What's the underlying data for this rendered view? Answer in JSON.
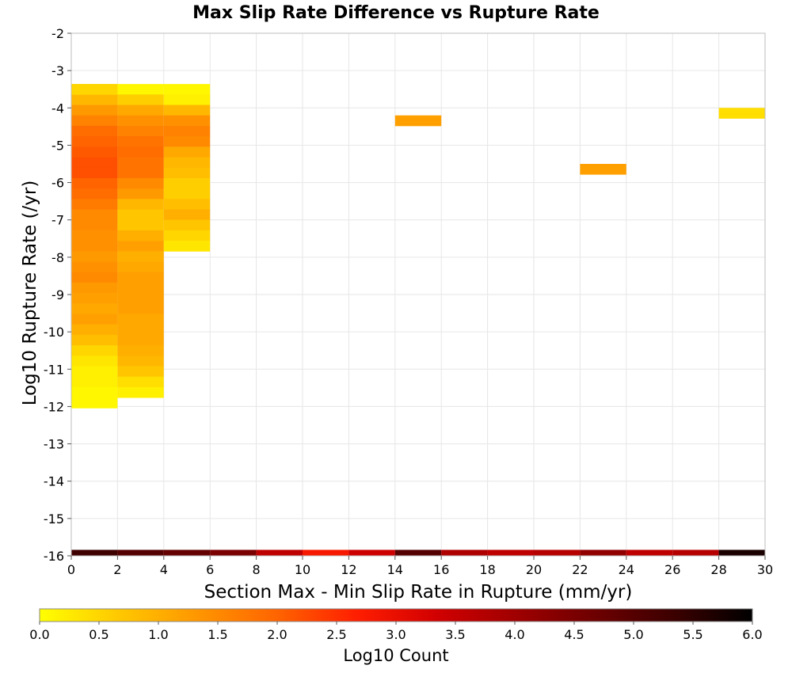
{
  "chart_data": {
    "type": "heatmap",
    "title": "Max Slip Rate Difference vs Rupture Rate",
    "xlabel": "Section Max - Min Slip Rate in Rupture (mm/yr)",
    "ylabel": "Log10 Rupture Rate (/yr)",
    "xlim": [
      0,
      30
    ],
    "ylim": [
      -16,
      -2
    ],
    "x_ticks": [
      "0",
      "2",
      "4",
      "6",
      "8",
      "10",
      "12",
      "14",
      "16",
      "18",
      "20",
      "22",
      "24",
      "26",
      "28",
      "30"
    ],
    "y_ticks": [
      "-2",
      "-3",
      "-4",
      "-5",
      "-6",
      "-7",
      "-8",
      "-9",
      "-10",
      "-11",
      "-12",
      "-13",
      "-14",
      "-15",
      "-16"
    ],
    "grid": true,
    "x_bin_width": 2,
    "y_bin_width": 0.28,
    "colorbar": {
      "label": "Log10 Count",
      "min": 0,
      "max": 6,
      "ticks": [
        "0.0",
        "0.5",
        "1.0",
        "1.5",
        "2.0",
        "2.5",
        "3.0",
        "3.5",
        "4.0",
        "4.5",
        "5.0",
        "5.5",
        "6.0"
      ],
      "colors": [
        "#ffff00",
        "#ffc800",
        "#ff9600",
        "#ff6400",
        "#ff1e00",
        "#d20000",
        "#a00000",
        "#6e0000",
        "#3c0000",
        "#000000"
      ]
    },
    "columns": [
      {
        "x": 1,
        "v": [
          0.5,
          0.9,
          1.3,
          1.6,
          1.9,
          2.0,
          2.1,
          2.2,
          2.2,
          2.0,
          1.9,
          1.7,
          1.5,
          1.5,
          1.4,
          1.4,
          1.3,
          1.4,
          1.5,
          1.3,
          1.2,
          1.1,
          1.2,
          1.0,
          0.8,
          0.5,
          0.3,
          0.2,
          0.2,
          0.1,
          0.1
        ],
        "bottom": 4.5
      },
      {
        "x": 3,
        "v": [
          0.1,
          0.6,
          1.1,
          1.4,
          1.6,
          1.8,
          1.9,
          1.8,
          1.8,
          1.5,
          1.3,
          0.9,
          0.7,
          0.7,
          1.0,
          1.2,
          1.0,
          1.1,
          1.2,
          1.2,
          1.2,
          1.2,
          1.1,
          1.1,
          1.1,
          1.0,
          0.9,
          0.7,
          0.4,
          0.2
        ],
        "bottom": 4.5
      },
      {
        "x": 5,
        "v": [
          0.1,
          0.2,
          0.9,
          1.4,
          1.6,
          1.5,
          1.1,
          0.9,
          0.8,
          0.6,
          0.6,
          0.8,
          1.0,
          0.7,
          0.5,
          0.3
        ],
        "bottom": 3.9
      }
    ],
    "cells": [
      {
        "x": 1,
        "y0": -3.36,
        "v": 0.5
      },
      {
        "x": 29,
        "y0": -4.0,
        "v": 0.4
      },
      {
        "x": 15,
        "y0": -4.2,
        "v": 1.2
      },
      {
        "x": 23,
        "y0": -5.5,
        "v": 1.2
      }
    ],
    "bottom_row": [
      {
        "x": 1,
        "v": 5.3
      },
      {
        "x": 3,
        "v": 5.0
      },
      {
        "x": 5,
        "v": 4.8
      },
      {
        "x": 7,
        "v": 4.5
      },
      {
        "x": 9,
        "v": 3.6
      },
      {
        "x": 11,
        "v": 2.8
      },
      {
        "x": 13,
        "v": 3.4
      },
      {
        "x": 15,
        "v": 5.0
      },
      {
        "x": 17,
        "v": 3.8
      },
      {
        "x": 19,
        "v": 3.6
      },
      {
        "x": 21,
        "v": 3.7
      },
      {
        "x": 23,
        "v": 4.2
      },
      {
        "x": 25,
        "v": 3.6
      },
      {
        "x": 27,
        "v": 3.7
      },
      {
        "x": 29,
        "v": 5.7
      }
    ]
  }
}
